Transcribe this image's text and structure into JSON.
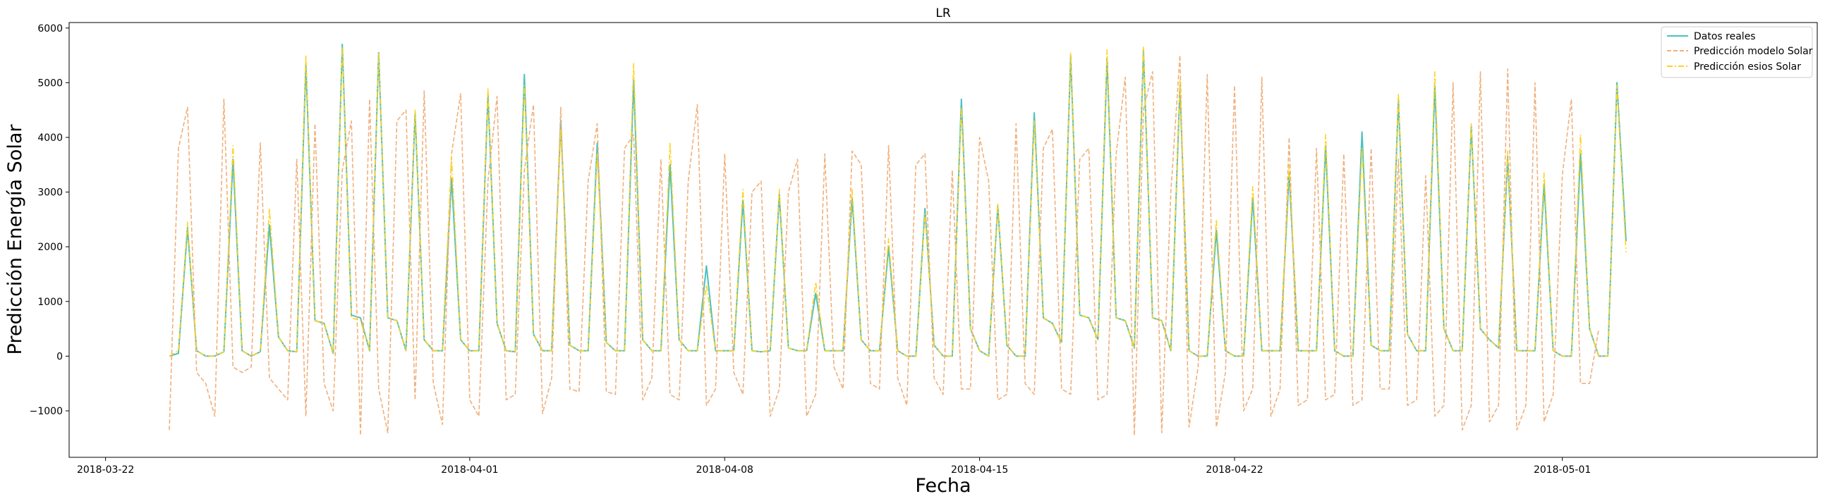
{
  "chart_data": {
    "type": "line",
    "title": "LR",
    "xlabel": "Fecha",
    "ylabel": "Predicción Energía Solar",
    "x_start": "2018-03-23T18:00",
    "step_hours": 6,
    "xlim": [
      "2018-03-21",
      "2018-05-08"
    ],
    "ylim": [
      -1850,
      6100
    ],
    "x_ticks": [
      "2018-03-22",
      "2018-04-01",
      "2018-04-08",
      "2018-04-15",
      "2018-04-22",
      "2018-05-01"
    ],
    "y_ticks": [
      -1000,
      0,
      1000,
      2000,
      3000,
      4000,
      5000,
      6000
    ],
    "grid": false,
    "legend_position": "top-right",
    "series": [
      {
        "name": "Datos reales",
        "color": "#4ec0c0",
        "dash": "solid",
        "values": [
          0,
          50,
          2350,
          100,
          0,
          0,
          80,
          3600,
          100,
          0,
          80,
          2400,
          350,
          100,
          80,
          5350,
          650,
          600,
          50,
          5700,
          750,
          700,
          100,
          5550,
          700,
          650,
          100,
          4450,
          300,
          100,
          100,
          3250,
          300,
          100,
          100,
          4800,
          600,
          100,
          80,
          5150,
          400,
          100,
          100,
          4300,
          200,
          100,
          100,
          3900,
          250,
          100,
          100,
          5050,
          300,
          100,
          100,
          3500,
          300,
          100,
          100,
          1650,
          100,
          100,
          100,
          2850,
          100,
          80,
          100,
          2950,
          150,
          100,
          100,
          1150,
          100,
          100,
          100,
          2900,
          300,
          100,
          100,
          2000,
          100,
          0,
          0,
          2700,
          200,
          0,
          0,
          4700,
          500,
          100,
          0,
          2750,
          200,
          0,
          0,
          4450,
          700,
          600,
          250,
          5500,
          750,
          700,
          300,
          5450,
          700,
          650,
          150,
          5600,
          700,
          650,
          100,
          4950,
          100,
          0,
          0,
          2300,
          100,
          0,
          0,
          2900,
          100,
          100,
          100,
          3350,
          100,
          100,
          100,
          3850,
          100,
          0,
          0,
          4100,
          200,
          100,
          100,
          4700,
          400,
          100,
          100,
          4950,
          500,
          100,
          100,
          4200,
          500,
          300,
          150,
          3650,
          100,
          100,
          100,
          3150,
          100,
          0,
          0,
          3700,
          500,
          0,
          0,
          5000,
          2100
        ]
      },
      {
        "name": "Predicción modelo Solar",
        "color": "#f0b07c",
        "dash": "dashed",
        "values": [
          -1350,
          3800,
          4550,
          -300,
          -500,
          -1100,
          4700,
          -200,
          -300,
          -200,
          3900,
          -400,
          -600,
          -800,
          3600,
          -1100,
          4250,
          -500,
          -1000,
          3400,
          4300,
          -1450,
          4700,
          -600,
          -1400,
          4300,
          4500,
          -800,
          4850,
          -500,
          -1250,
          3700,
          4800,
          -800,
          -1100,
          3200,
          4750,
          -800,
          -700,
          3400,
          4600,
          -1050,
          -400,
          4550,
          -600,
          -650,
          3200,
          4250,
          -650,
          -700,
          3800,
          4050,
          -800,
          -400,
          3600,
          -700,
          -800,
          3200,
          4600,
          -900,
          -600,
          3700,
          -300,
          -700,
          3000,
          3200,
          -1100,
          -600,
          3000,
          3600,
          -1100,
          -700,
          3700,
          -200,
          -600,
          3750,
          3500,
          -500,
          -600,
          3850,
          -400,
          -900,
          3500,
          3700,
          -400,
          -700,
          3400,
          -600,
          -600,
          4000,
          3200,
          -800,
          -700,
          4250,
          -500,
          -700,
          3800,
          4150,
          -600,
          -700,
          3600,
          3800,
          -800,
          -700,
          3700,
          5100,
          -1450,
          4500,
          5200,
          -1400,
          3000,
          5500,
          -1300,
          -200,
          5150,
          -1300,
          -300,
          4950,
          -1000,
          -600,
          5100,
          -1100,
          -600,
          4000,
          -900,
          -800,
          3800,
          -800,
          -700,
          3700,
          -900,
          -800,
          3800,
          -600,
          -600,
          3600,
          -900,
          -800,
          3300,
          -1100,
          -900,
          5000,
          -1350,
          -900,
          5200,
          -1200,
          -900,
          5250,
          -1350,
          -900,
          5000,
          -1200,
          -700,
          3300,
          4700,
          -500,
          -500,
          500
        ]
      },
      {
        "name": "Predicción esios Solar",
        "color": "#ffd21e",
        "dash": "dashdot",
        "values": [
          0,
          100,
          2450,
          100,
          0,
          0,
          80,
          3850,
          100,
          0,
          80,
          2700,
          350,
          100,
          80,
          5500,
          650,
          600,
          50,
          5650,
          700,
          650,
          100,
          5550,
          700,
          650,
          100,
          4500,
          300,
          100,
          100,
          3650,
          300,
          100,
          100,
          4900,
          600,
          100,
          80,
          4950,
          400,
          100,
          100,
          4150,
          200,
          100,
          100,
          3700,
          250,
          100,
          100,
          5350,
          300,
          100,
          100,
          3900,
          300,
          100,
          100,
          1300,
          100,
          100,
          100,
          3050,
          100,
          80,
          100,
          3050,
          150,
          100,
          100,
          1350,
          100,
          100,
          100,
          3050,
          300,
          100,
          100,
          2150,
          100,
          0,
          0,
          2600,
          200,
          0,
          0,
          4550,
          500,
          100,
          0,
          2800,
          200,
          0,
          0,
          4300,
          700,
          600,
          250,
          5550,
          750,
          700,
          300,
          5600,
          700,
          650,
          150,
          5650,
          700,
          650,
          100,
          5050,
          100,
          0,
          0,
          2500,
          100,
          0,
          0,
          3100,
          100,
          100,
          100,
          3500,
          100,
          100,
          100,
          4050,
          100,
          0,
          0,
          3800,
          200,
          100,
          100,
          4800,
          400,
          100,
          100,
          5200,
          500,
          100,
          100,
          4250,
          500,
          300,
          150,
          3750,
          100,
          100,
          100,
          3350,
          100,
          0,
          0,
          4050,
          500,
          0,
          0,
          4950,
          1900
        ]
      }
    ]
  }
}
